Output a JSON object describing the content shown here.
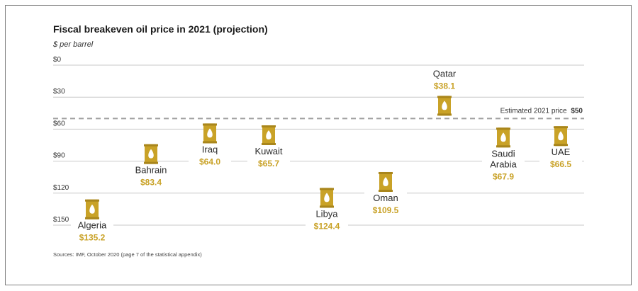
{
  "chart_data": {
    "type": "scatter",
    "title": "Fiscal breakeven oil price in 2021 (projection)",
    "subtitle": "$ per barrel",
    "y_axis": {
      "inverted": true,
      "ylim": [
        0,
        150
      ],
      "ticks": [
        0,
        30,
        60,
        90,
        120,
        150
      ],
      "tick_labels": [
        "$0",
        "$30",
        "$60",
        "$90",
        "$120",
        "$150"
      ],
      "grid": true
    },
    "marker": "oil-barrel-icon",
    "marker_color": "#c9a227",
    "value_color": "#c9a227",
    "points": [
      {
        "category": "Algeria",
        "value": 135.2,
        "value_label": "$135.2",
        "label_position": "below"
      },
      {
        "category": "Bahrain",
        "value": 83.4,
        "value_label": "$83.4",
        "label_position": "below"
      },
      {
        "category": "Iraq",
        "value": 64.0,
        "value_label": "$64.0",
        "label_position": "below"
      },
      {
        "category": "Kuwait",
        "value": 65.7,
        "value_label": "$65.7",
        "label_position": "below"
      },
      {
        "category": "Libya",
        "value": 124.4,
        "value_label": "$124.4",
        "label_position": "below"
      },
      {
        "category": "Oman",
        "value": 109.5,
        "value_label": "$109.5",
        "label_position": "below"
      },
      {
        "category": "Qatar",
        "value": 38.1,
        "value_label": "$38.1",
        "label_position": "above"
      },
      {
        "category": "Saudi Arabia",
        "value": 67.9,
        "value_label": "$67.9",
        "label_position": "below"
      },
      {
        "category": "UAE",
        "value": 66.5,
        "value_label": "$66.5",
        "label_position": "below"
      }
    ],
    "reference_line": {
      "value": 50,
      "label": "Estimated 2021 price",
      "value_label": "$50",
      "style": "dashed"
    }
  },
  "source": "Sources: IMF, October 2020 (page 7 of the statistical appendix)"
}
